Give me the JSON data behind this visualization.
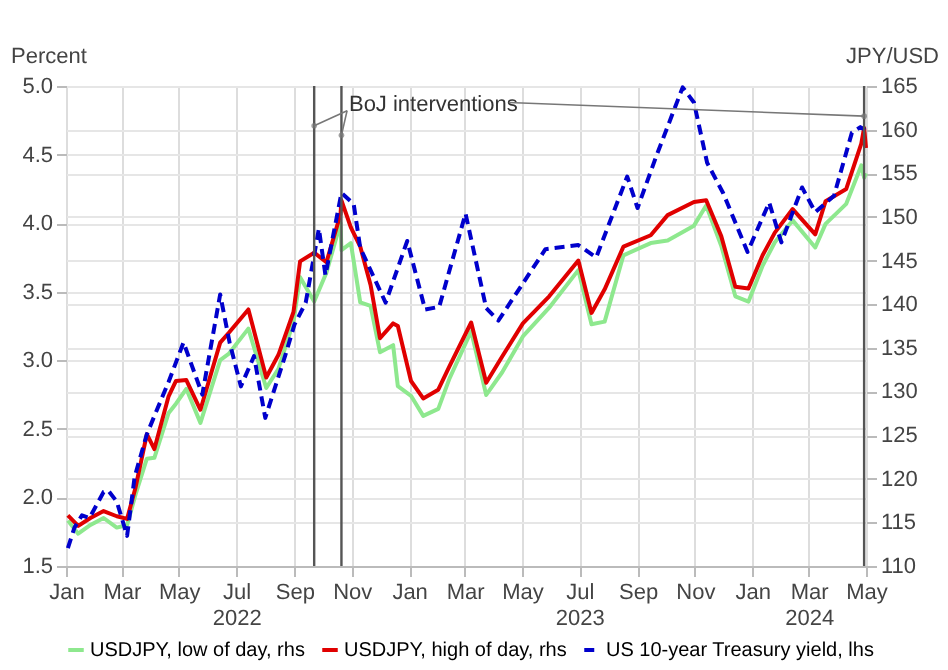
{
  "chart_data": {
    "type": "line",
    "ylabel": "Percent",
    "y2label": "JPY/USD",
    "xlim": [
      "2022-01-01",
      "2024-05-01"
    ],
    "xticks": [
      {
        "value": "2022-01-01",
        "label": "Jan"
      },
      {
        "value": "2022-03-01",
        "label": "Mar"
      },
      {
        "value": "2022-05-01",
        "label": "May"
      },
      {
        "value": "2022-07-01",
        "label": "Jul\n2022"
      },
      {
        "value": "2022-09-01",
        "label": "Sep"
      },
      {
        "value": "2022-11-01",
        "label": "Nov"
      },
      {
        "value": "2023-01-01",
        "label": "Jan"
      },
      {
        "value": "2023-03-01",
        "label": "Mar"
      },
      {
        "value": "2023-05-01",
        "label": "May"
      },
      {
        "value": "2023-07-01",
        "label": "Jul\n2023"
      },
      {
        "value": "2023-09-01",
        "label": "Sep"
      },
      {
        "value": "2023-11-01",
        "label": "Nov"
      },
      {
        "value": "2024-01-01",
        "label": "Jan"
      },
      {
        "value": "2024-03-01",
        "label": "Mar\n2024"
      },
      {
        "value": "2024-05-01",
        "label": "May"
      }
    ],
    "ylim": [
      1.5,
      5.0
    ],
    "yticks": [
      1.5,
      {
        "value": 2,
        "label": "2.0"
      },
      2.5,
      {
        "value": 3,
        "label": "3.0"
      },
      3.5,
      {
        "value": 4,
        "label": "4.0"
      },
      4.5,
      {
        "value": 5,
        "label": "5.0"
      }
    ],
    "y2lim": [
      110,
      165
    ],
    "y2ticks": [
      110,
      115,
      120,
      125,
      130,
      135,
      140,
      145,
      150,
      155,
      160,
      165
    ],
    "grid": true,
    "legend": "bottom",
    "annotations": [
      "BoJ interventions"
    ],
    "ref_lines": [
      {
        "axis": "x",
        "value": "2022-09-22",
        "color": "#555555"
      },
      {
        "axis": "x",
        "value": "2022-10-21",
        "color": "#555555"
      },
      {
        "axis": "x",
        "value": "2024-04-29",
        "color": "#555555"
      }
    ],
    "series": [
      {
        "name": "USDJPY, low of day, rhs",
        "color": "#8ee88e",
        "axis": "y2",
        "line_style": "solid",
        "x": [
          "2022-01-03",
          "2022-01-14",
          "2022-01-27",
          "2022-02-10",
          "2022-02-24",
          "2022-03-07",
          "2022-03-16",
          "2022-03-28",
          "2022-04-05",
          "2022-04-20",
          "2022-04-28",
          "2022-05-09",
          "2022-05-24",
          "2022-06-14",
          "2022-06-23",
          "2022-07-14",
          "2022-08-02",
          "2022-08-15",
          "2022-08-31",
          "2022-09-07",
          "2022-09-22",
          "2022-10-05",
          "2022-10-20",
          "2022-10-21",
          "2022-10-31",
          "2022-11-10",
          "2022-11-21",
          "2022-12-01",
          "2022-12-15",
          "2022-12-20",
          "2023-01-03",
          "2023-01-16",
          "2023-02-01",
          "2023-02-13",
          "2023-03-08",
          "2023-03-24",
          "2023-04-10",
          "2023-05-02",
          "2023-05-30",
          "2023-06-30",
          "2023-07-14",
          "2023-07-28",
          "2023-08-17",
          "2023-09-15",
          "2023-10-03",
          "2023-10-31",
          "2023-11-13",
          "2023-11-29",
          "2023-12-14",
          "2023-12-28",
          "2024-01-12",
          "2024-01-25",
          "2024-02-13",
          "2024-03-08",
          "2024-03-19",
          "2024-04-10",
          "2024-04-26",
          "2024-04-29",
          "2024-05-01"
        ],
        "values": [
          115.2,
          113.7,
          114.7,
          115.5,
          114.4,
          114.7,
          118.2,
          122.3,
          122.4,
          127.5,
          128.6,
          130.3,
          126.4,
          133.6,
          134.3,
          137.2,
          130.4,
          132.6,
          138.0,
          143.1,
          140.3,
          143.6,
          149.3,
          146.2,
          147.0,
          140.2,
          139.8,
          134.5,
          135.3,
          130.6,
          129.5,
          127.2,
          128.0,
          131.5,
          136.9,
          129.6,
          132.2,
          136.3,
          139.6,
          143.9,
          137.7,
          138.0,
          145.6,
          147.0,
          147.3,
          149.0,
          151.3,
          146.7,
          140.9,
          140.3,
          144.4,
          147.1,
          149.6,
          146.5,
          149.2,
          151.5,
          155.9,
          154.5,
          155.0
        ]
      },
      {
        "name": "USDJPY, high of day, rhs",
        "color": "#e00000",
        "axis": "y2",
        "line_style": "solid",
        "x": [
          "2022-01-03",
          "2022-01-14",
          "2022-01-27",
          "2022-02-10",
          "2022-02-24",
          "2022-03-07",
          "2022-03-16",
          "2022-03-28",
          "2022-04-05",
          "2022-04-20",
          "2022-04-28",
          "2022-05-09",
          "2022-05-24",
          "2022-06-14",
          "2022-06-23",
          "2022-07-14",
          "2022-08-02",
          "2022-08-15",
          "2022-08-31",
          "2022-09-07",
          "2022-09-22",
          "2022-10-05",
          "2022-10-20",
          "2022-10-21",
          "2022-10-31",
          "2022-11-10",
          "2022-11-21",
          "2022-12-01",
          "2022-12-15",
          "2022-12-20",
          "2023-01-03",
          "2023-01-16",
          "2023-02-01",
          "2023-02-13",
          "2023-03-08",
          "2023-03-24",
          "2023-04-10",
          "2023-05-02",
          "2023-05-30",
          "2023-06-30",
          "2023-07-14",
          "2023-07-28",
          "2023-08-17",
          "2023-09-15",
          "2023-10-03",
          "2023-10-31",
          "2023-11-13",
          "2023-11-29",
          "2023-12-14",
          "2023-12-28",
          "2024-01-12",
          "2024-01-25",
          "2024-02-13",
          "2024-03-08",
          "2024-03-19",
          "2024-04-10",
          "2024-04-26",
          "2024-04-29",
          "2024-05-01"
        ],
        "values": [
          115.8,
          114.6,
          115.5,
          116.3,
          115.7,
          115.4,
          119.0,
          125.1,
          123.4,
          129.4,
          131.2,
          131.3,
          127.9,
          135.6,
          136.7,
          139.4,
          131.6,
          134.2,
          139.1,
          144.9,
          145.9,
          144.8,
          150.3,
          151.9,
          148.8,
          146.6,
          142.2,
          136.1,
          137.8,
          137.5,
          131.2,
          129.2,
          130.2,
          132.9,
          137.9,
          131.0,
          134.0,
          137.8,
          140.9,
          145.0,
          139.0,
          141.7,
          146.6,
          147.9,
          150.2,
          151.7,
          151.9,
          147.8,
          142.0,
          141.8,
          145.6,
          148.2,
          150.9,
          148.0,
          151.8,
          153.2,
          158.4,
          160.2,
          157.9
        ]
      },
      {
        "name": "US 10-year Treasury yield, lhs",
        "color": "#0000cc",
        "axis": "y",
        "line_style": "dashed",
        "x": [
          "2022-01-03",
          "2022-01-10",
          "2022-01-18",
          "2022-01-26",
          "2022-02-10",
          "2022-02-15",
          "2022-02-24",
          "2022-03-07",
          "2022-03-15",
          "2022-03-28",
          "2022-04-06",
          "2022-04-20",
          "2022-05-06",
          "2022-05-26",
          "2022-06-14",
          "2022-06-24",
          "2022-07-06",
          "2022-07-20",
          "2022-08-01",
          "2022-08-22",
          "2022-09-01",
          "2022-09-13",
          "2022-09-27",
          "2022-10-04",
          "2022-10-21",
          "2022-11-03",
          "2022-11-10",
          "2022-12-07",
          "2022-12-30",
          "2023-01-18",
          "2023-02-02",
          "2023-03-02",
          "2023-03-24",
          "2023-04-06",
          "2023-05-26",
          "2023-06-30",
          "2023-07-19",
          "2023-08-21",
          "2023-09-01",
          "2023-09-21",
          "2023-10-19",
          "2023-10-31",
          "2023-11-14",
          "2023-12-01",
          "2023-12-27",
          "2024-01-19",
          "2024-02-01",
          "2024-02-23",
          "2024-03-08",
          "2024-03-28",
          "2024-04-16",
          "2024-04-25",
          "2024-04-30"
        ],
        "values": [
          1.63,
          1.78,
          1.87,
          1.85,
          2.04,
          2.05,
          1.97,
          1.72,
          2.15,
          2.46,
          2.61,
          2.84,
          3.13,
          2.75,
          3.48,
          3.13,
          2.81,
          3.03,
          2.58,
          3.03,
          3.26,
          3.42,
          3.96,
          3.62,
          4.22,
          4.14,
          3.82,
          3.42,
          3.87,
          3.37,
          3.39,
          4.07,
          3.38,
          3.29,
          3.81,
          3.84,
          3.75,
          4.34,
          4.11,
          4.49,
          4.99,
          4.88,
          4.44,
          4.22,
          3.79,
          4.15,
          3.86,
          4.26,
          4.08,
          4.2,
          4.66,
          4.7,
          4.68
        ]
      }
    ]
  }
}
